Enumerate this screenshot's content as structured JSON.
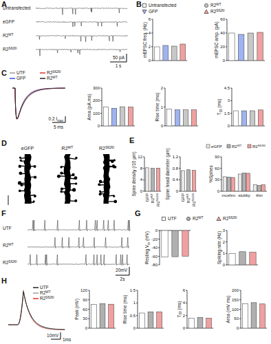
{
  "figure": {
    "panel_labels": [
      "A",
      "B",
      "C",
      "D",
      "E",
      "F",
      "G",
      "H"
    ],
    "A": {
      "rows": [
        "Untransfected",
        "eGFP",
        "R2WT",
        "R2S626I"
      ],
      "scale_y": "50 pA",
      "scale_x": "1 s"
    },
    "B": {
      "legend": [
        {
          "name": "Untransfected",
          "color": "#ffffff",
          "marker": "square"
        },
        {
          "name": "GFP",
          "color": "#9fb3f0",
          "marker": "triangle-down"
        },
        {
          "name": "R2WT",
          "color": "#c8c8c8",
          "marker": "circle"
        },
        {
          "name": "R2S626I",
          "color": "#f0a0a0",
          "marker": "triangle-up"
        }
      ]
    },
    "C": {
      "legend": [
        {
          "name": "UTF",
          "color": "#9e9e9e"
        },
        {
          "name": "GFP",
          "color": "#3050e0"
        },
        {
          "name": "R2S626I",
          "color": "#e03030"
        },
        {
          "name": "R2WT",
          "color": "#202020"
        }
      ],
      "scale_y": "0.2 Imax",
      "scale_x": "5 ms"
    },
    "D": {
      "labels": [
        "eGFP",
        "R2WT",
        "R2S626I"
      ]
    },
    "F": {
      "rows": [
        "UTF",
        "R2WT",
        "R2S626I"
      ],
      "scale_y": "20mV",
      "scale_x": "2s"
    },
    "G": {
      "legend": [
        {
          "name": "UTF",
          "color": "#ffffff",
          "marker": "square"
        },
        {
          "name": "R2WT",
          "color": "#b0b0b0",
          "marker": "circle"
        },
        {
          "name": "R2S626I",
          "color": "#f0a0a0",
          "marker": "triangle-up"
        }
      ]
    },
    "H": {
      "legend": [
        {
          "name": "UTF",
          "color": "#202020"
        },
        {
          "name": "R2WT",
          "color": "#9e9e9e"
        },
        {
          "name": "R2S626I",
          "color": "#e03030"
        }
      ],
      "scale_y": "10mV",
      "scale_x": "1ms"
    }
  },
  "chart_data": [
    {
      "type": "bar",
      "ylabel": "mEPSC freq. (Hz)",
      "categories": [
        null,
        null,
        null,
        null
      ],
      "values": [
        2.0,
        2.2,
        2.1,
        2.4
      ],
      "colors": [
        "#ffffff",
        "#9fb3f0",
        "#c8c8c8",
        "#f0a0a0"
      ],
      "ylim": [
        0,
        6
      ],
      "yticks": [
        0,
        2,
        4,
        6
      ]
    },
    {
      "type": "bar",
      "ylabel": "mEPSC amp. (pA)",
      "categories": [
        null,
        null,
        null,
        null
      ],
      "values": [
        40,
        38,
        40,
        41
      ],
      "colors": [
        "#ffffff",
        "#9fb3f0",
        "#c8c8c8",
        "#f0a0a0"
      ],
      "ylim": [
        0,
        60
      ],
      "yticks": [
        0,
        20,
        40,
        60
      ]
    },
    {
      "type": "bar",
      "ylabel": "Area (pA.ms)",
      "categories": [
        null,
        null,
        null,
        null
      ],
      "values": [
        150,
        140,
        152,
        150
      ],
      "colors": [
        "#ffffff",
        "#9fb3f0",
        "#c8c8c8",
        "#f0a0a0"
      ],
      "ylim": [
        0,
        300
      ],
      "yticks": [
        0,
        100,
        200,
        300
      ]
    },
    {
      "type": "bar",
      "ylabel": "Rise time (ms)",
      "categories": [
        null,
        null,
        null,
        null
      ],
      "values": [
        0.9,
        0.85,
        0.85,
        0.85
      ],
      "colors": [
        "#ffffff",
        "#9fb3f0",
        "#c8c8c8",
        "#f0a0a0"
      ],
      "ylim": [
        0,
        2
      ],
      "yticks": [
        0,
        1,
        2
      ]
    },
    {
      "type": "bar",
      "ylabel": "T50 (ms)",
      "categories": [
        null,
        null,
        null,
        null
      ],
      "values": [
        1.8,
        1.8,
        1.8,
        1.9
      ],
      "colors": [
        "#ffffff",
        "#9fb3f0",
        "#c8c8c8",
        "#f0a0a0"
      ],
      "ylim": [
        0,
        4.5
      ],
      "yticks": [
        0,
        1.5,
        3,
        4.5
      ]
    },
    {
      "type": "bar",
      "ylabel": "Spine density (/10 µm)",
      "categories": [
        "GFP",
        "R2WT",
        "R2S626I"
      ],
      "values": [
        8.2,
        8.0,
        8.1
      ],
      "colors": [
        "#e8e8e8",
        "#b0b0b0",
        "#f0a0a0"
      ],
      "ylim": [
        0,
        12
      ],
      "yticks": [
        0,
        4,
        8,
        12
      ]
    },
    {
      "type": "bar",
      "ylabel": "Spine head diameter (µm)",
      "categories": [
        "GFP",
        "R2WT",
        "R2S626I"
      ],
      "values": [
        0.72,
        0.75,
        0.73
      ],
      "colors": [
        "#e8e8e8",
        "#b0b0b0",
        "#f0a0a0"
      ],
      "ylim": [
        0,
        1.2
      ],
      "yticks": [
        0,
        0.4,
        0.8,
        1.2
      ]
    },
    {
      "type": "bar",
      "ylabel": "%Spines",
      "categories": [
        "mushm.",
        "stubby",
        "thin"
      ],
      "series": [
        {
          "name": "eGFP",
          "color": "#e8e8e8",
          "values": [
            38,
            45,
            17
          ]
        },
        {
          "name": "R2WT",
          "color": "#b0b0b0",
          "values": [
            37,
            48,
            15
          ]
        },
        {
          "name": "R2S626I",
          "color": "#f0a0a0",
          "values": [
            36,
            47,
            17
          ]
        }
      ],
      "ylim": [
        0,
        90
      ],
      "yticks": [
        0,
        30,
        60,
        90
      ]
    },
    {
      "type": "bar",
      "ylabel": "Resting Vm (mV)",
      "categories": [
        null,
        null,
        null
      ],
      "values": [
        -62,
        -61,
        -60
      ],
      "colors": [
        "#ffffff",
        "#b0b0b0",
        "#f0a0a0"
      ],
      "ylim": [
        -80,
        0
      ],
      "yticks": [
        -80,
        -60,
        -40,
        -20,
        0
      ]
    },
    {
      "type": "bar",
      "ylabel": "Spiking rate (Hz)",
      "categories": [
        null,
        null,
        null
      ],
      "values": [
        1.0,
        1.15,
        1.1
      ],
      "colors": [
        "#ffffff",
        "#b0b0b0",
        "#f0a0a0"
      ],
      "ylim": [
        0,
        3
      ],
      "yticks": [
        0,
        1,
        2,
        3
      ]
    },
    {
      "type": "bar",
      "ylabel": "Peak (mV)",
      "categories": [
        null,
        null,
        null
      ],
      "values": [
        75,
        78,
        76
      ],
      "colors": [
        "#ffffff",
        "#b0b0b0",
        "#f0a0a0"
      ],
      "ylim": [
        0,
        120
      ],
      "yticks": [
        0,
        30,
        60,
        90,
        120
      ]
    },
    {
      "type": "bar",
      "ylabel": "Rise time (ms)",
      "categories": [
        null,
        null,
        null
      ],
      "values": [
        0.6,
        0.65,
        0.65
      ],
      "colors": [
        "#ffffff",
        "#b0b0b0",
        "#f0a0a0"
      ],
      "ylim": [
        0,
        1.5
      ],
      "yticks": [
        0,
        0.5,
        1,
        1.5
      ]
    },
    {
      "type": "bar",
      "ylabel": "T50 (ms)",
      "categories": [
        null,
        null,
        null
      ],
      "values": [
        1.6,
        1.7,
        1.6
      ],
      "colors": [
        "#ffffff",
        "#b0b0b0",
        "#f0a0a0"
      ],
      "ylim": [
        0,
        6
      ],
      "yticks": [
        0,
        2,
        4,
        6
      ]
    },
    {
      "type": "bar",
      "ylabel": "Area (mV ms)",
      "categories": [
        null,
        null,
        null
      ],
      "values": [
        130,
        135,
        128
      ],
      "colors": [
        "#ffffff",
        "#b0b0b0",
        "#f0a0a0"
      ],
      "ylim": [
        0,
        200
      ],
      "yticks": [
        0,
        50,
        100,
        150,
        200
      ]
    }
  ]
}
